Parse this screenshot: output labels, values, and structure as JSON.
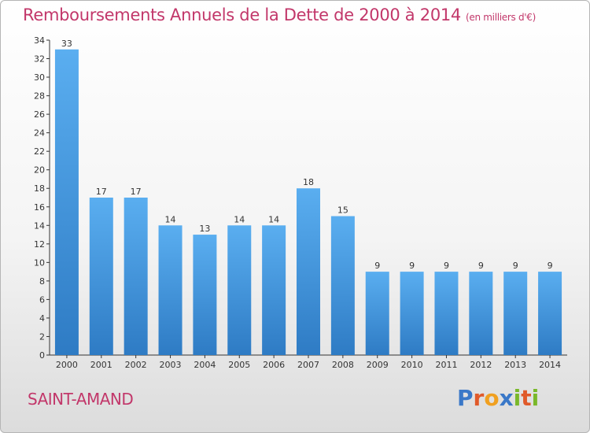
{
  "header": {
    "title": "Remboursements Annuels de la Dette de 2000 à 2014",
    "subtitle": "(en milliers d'€)"
  },
  "footer": {
    "city": "SAINT-AMAND",
    "brand": "Proxiti",
    "brand_letters": [
      "P",
      "r",
      "o",
      "x",
      "i",
      "t",
      "i"
    ],
    "brand_colors": [
      "#3a78c8",
      "#e05a2a",
      "#f0a020",
      "#3a78c8",
      "#7ab82a",
      "#e05a2a",
      "#7ab82a"
    ]
  },
  "colors": {
    "bar_top": "#5aaef0",
    "bar_bottom": "#2e7bc4",
    "accent": "#c2376a",
    "axis": "#333333"
  },
  "chart_data": {
    "type": "bar",
    "title": "Remboursements Annuels de la Dette de 2000 à 2014",
    "subtitle": "(en milliers d'€)",
    "categories": [
      "2000",
      "2001",
      "2002",
      "2003",
      "2004",
      "2005",
      "2006",
      "2007",
      "2008",
      "2009",
      "2010",
      "2011",
      "2012",
      "2013",
      "2014"
    ],
    "values": [
      33,
      17,
      17,
      14,
      13,
      14,
      14,
      18,
      15,
      9,
      9,
      9,
      9,
      9,
      9
    ],
    "data_labels": [
      "33",
      "17",
      "17",
      "14",
      "13",
      "14",
      "14",
      "18",
      "15",
      "9",
      "9",
      "9",
      "9",
      "9",
      "9"
    ],
    "ylim": [
      0,
      34
    ],
    "yticks": [
      0,
      2,
      4,
      6,
      8,
      10,
      12,
      14,
      16,
      18,
      20,
      22,
      24,
      26,
      28,
      30,
      32,
      34
    ],
    "xlabel": "",
    "ylabel": "",
    "grid": false,
    "legend": "none"
  }
}
